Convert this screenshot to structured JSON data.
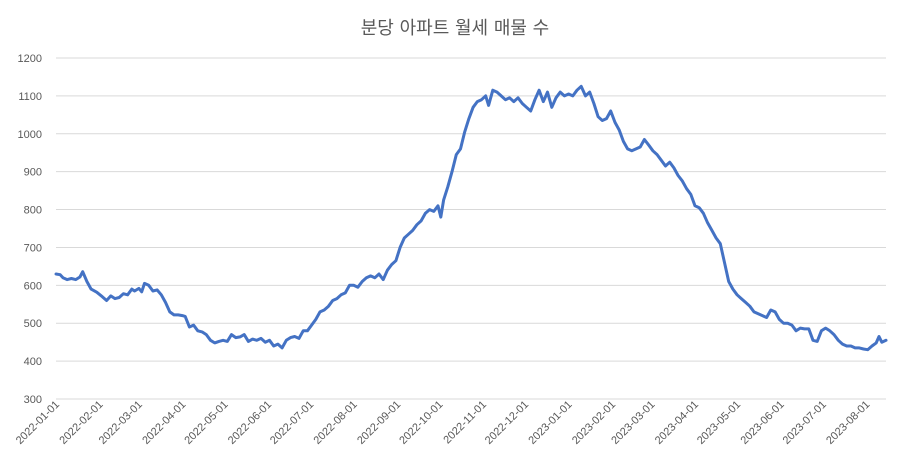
{
  "chart_data": {
    "type": "line",
    "title": "분당 아파트 월세 매물 수",
    "xlabel": "",
    "ylabel": "",
    "ylim": [
      300,
      1200
    ],
    "yticks": [
      300,
      400,
      500,
      600,
      700,
      800,
      900,
      1000,
      1100,
      1200
    ],
    "xlim": [
      "2022-01-01",
      "2023-08-15"
    ],
    "xticks": [
      "2022-01-01",
      "2022-02-01",
      "2022-03-01",
      "2022-04-01",
      "2022-05-01",
      "2022-06-01",
      "2022-07-01",
      "2022-08-01",
      "2022-09-01",
      "2022-10-01",
      "2022-11-01",
      "2022-12-01",
      "2023-01-01",
      "2023-02-01",
      "2023-03-01",
      "2023-04-01",
      "2023-05-01",
      "2023-06-01",
      "2023-07-01",
      "2023-08-01"
    ],
    "grid": true,
    "legend": "none",
    "series": [
      {
        "color": "#4472c4",
        "points": [
          [
            "2022-01-01",
            630
          ],
          [
            "2022-01-04",
            628
          ],
          [
            "2022-01-06",
            620
          ],
          [
            "2022-01-09",
            615
          ],
          [
            "2022-01-12",
            618
          ],
          [
            "2022-01-15",
            615
          ],
          [
            "2022-01-18",
            622
          ],
          [
            "2022-01-20",
            636
          ],
          [
            "2022-01-23",
            610
          ],
          [
            "2022-01-26",
            590
          ],
          [
            "2022-01-30",
            582
          ],
          [
            "2022-02-03",
            570
          ],
          [
            "2022-02-06",
            560
          ],
          [
            "2022-02-09",
            572
          ],
          [
            "2022-02-12",
            565
          ],
          [
            "2022-02-15",
            568
          ],
          [
            "2022-02-18",
            578
          ],
          [
            "2022-02-21",
            575
          ],
          [
            "2022-02-24",
            590
          ],
          [
            "2022-02-26",
            585
          ],
          [
            "2022-03-01",
            592
          ],
          [
            "2022-03-03",
            583
          ],
          [
            "2022-03-05",
            605
          ],
          [
            "2022-03-08",
            600
          ],
          [
            "2022-03-11",
            585
          ],
          [
            "2022-03-14",
            588
          ],
          [
            "2022-03-17",
            575
          ],
          [
            "2022-03-20",
            555
          ],
          [
            "2022-03-23",
            530
          ],
          [
            "2022-03-26",
            522
          ],
          [
            "2022-03-29",
            522
          ],
          [
            "2022-04-01",
            520
          ],
          [
            "2022-04-03",
            518
          ],
          [
            "2022-04-06",
            490
          ],
          [
            "2022-04-09",
            495
          ],
          [
            "2022-04-12",
            480
          ],
          [
            "2022-04-15",
            477
          ],
          [
            "2022-04-18",
            470
          ],
          [
            "2022-04-21",
            455
          ],
          [
            "2022-04-24",
            448
          ],
          [
            "2022-04-27",
            452
          ],
          [
            "2022-04-30",
            455
          ],
          [
            "2022-05-03",
            452
          ],
          [
            "2022-05-06",
            470
          ],
          [
            "2022-05-09",
            462
          ],
          [
            "2022-05-12",
            464
          ],
          [
            "2022-05-15",
            470
          ],
          [
            "2022-05-18",
            452
          ],
          [
            "2022-05-21",
            458
          ],
          [
            "2022-05-24",
            455
          ],
          [
            "2022-05-27",
            460
          ],
          [
            "2022-05-30",
            450
          ],
          [
            "2022-06-02",
            455
          ],
          [
            "2022-06-05",
            440
          ],
          [
            "2022-06-08",
            445
          ],
          [
            "2022-06-11",
            435
          ],
          [
            "2022-06-14",
            455
          ],
          [
            "2022-06-17",
            462
          ],
          [
            "2022-06-20",
            465
          ],
          [
            "2022-06-23",
            460
          ],
          [
            "2022-06-26",
            480
          ],
          [
            "2022-06-29",
            480
          ],
          [
            "2022-07-02",
            495
          ],
          [
            "2022-07-05",
            510
          ],
          [
            "2022-07-08",
            530
          ],
          [
            "2022-07-11",
            535
          ],
          [
            "2022-07-14",
            545
          ],
          [
            "2022-07-17",
            560
          ],
          [
            "2022-07-20",
            565
          ],
          [
            "2022-07-23",
            575
          ],
          [
            "2022-07-26",
            580
          ],
          [
            "2022-07-29",
            600
          ],
          [
            "2022-08-01",
            600
          ],
          [
            "2022-08-04",
            595
          ],
          [
            "2022-08-07",
            610
          ],
          [
            "2022-08-10",
            620
          ],
          [
            "2022-08-13",
            625
          ],
          [
            "2022-08-16",
            620
          ],
          [
            "2022-08-19",
            630
          ],
          [
            "2022-08-22",
            615
          ],
          [
            "2022-08-25",
            640
          ],
          [
            "2022-08-28",
            655
          ],
          [
            "2022-08-31",
            665
          ],
          [
            "2022-09-03",
            700
          ],
          [
            "2022-09-06",
            725
          ],
          [
            "2022-09-09",
            735
          ],
          [
            "2022-09-12",
            745
          ],
          [
            "2022-09-15",
            760
          ],
          [
            "2022-09-18",
            770
          ],
          [
            "2022-09-21",
            790
          ],
          [
            "2022-09-24",
            800
          ],
          [
            "2022-09-27",
            795
          ],
          [
            "2022-09-30",
            810
          ],
          [
            "2022-10-02",
            780
          ],
          [
            "2022-10-04",
            825
          ],
          [
            "2022-10-07",
            860
          ],
          [
            "2022-10-10",
            900
          ],
          [
            "2022-10-13",
            945
          ],
          [
            "2022-10-16",
            960
          ],
          [
            "2022-10-19",
            1005
          ],
          [
            "2022-10-22",
            1040
          ],
          [
            "2022-10-25",
            1070
          ],
          [
            "2022-10-28",
            1085
          ],
          [
            "2022-10-31",
            1090
          ],
          [
            "2022-11-03",
            1100
          ],
          [
            "2022-11-05",
            1075
          ],
          [
            "2022-11-08",
            1115
          ],
          [
            "2022-11-11",
            1110
          ],
          [
            "2022-11-14",
            1100
          ],
          [
            "2022-11-17",
            1090
          ],
          [
            "2022-11-20",
            1095
          ],
          [
            "2022-11-23",
            1085
          ],
          [
            "2022-11-26",
            1095
          ],
          [
            "2022-11-29",
            1080
          ],
          [
            "2022-12-02",
            1070
          ],
          [
            "2022-12-05",
            1060
          ],
          [
            "2022-12-08",
            1090
          ],
          [
            "2022-12-11",
            1115
          ],
          [
            "2022-12-14",
            1085
          ],
          [
            "2022-12-17",
            1110
          ],
          [
            "2022-12-20",
            1070
          ],
          [
            "2022-12-23",
            1095
          ],
          [
            "2022-12-26",
            1110
          ],
          [
            "2022-12-29",
            1100
          ],
          [
            "2023-01-01",
            1105
          ],
          [
            "2023-01-04",
            1100
          ],
          [
            "2023-01-07",
            1115
          ],
          [
            "2023-01-10",
            1125
          ],
          [
            "2023-01-13",
            1100
          ],
          [
            "2023-01-16",
            1110
          ],
          [
            "2023-01-19",
            1080
          ],
          [
            "2023-01-22",
            1045
          ],
          [
            "2023-01-25",
            1035
          ],
          [
            "2023-01-28",
            1040
          ],
          [
            "2023-01-31",
            1060
          ],
          [
            "2023-02-03",
            1030
          ],
          [
            "2023-02-06",
            1010
          ],
          [
            "2023-02-09",
            980
          ],
          [
            "2023-02-12",
            960
          ],
          [
            "2023-02-15",
            955
          ],
          [
            "2023-02-18",
            960
          ],
          [
            "2023-02-21",
            965
          ],
          [
            "2023-02-24",
            985
          ],
          [
            "2023-02-27",
            970
          ],
          [
            "2023-03-02",
            955
          ],
          [
            "2023-03-05",
            945
          ],
          [
            "2023-03-08",
            930
          ],
          [
            "2023-03-11",
            915
          ],
          [
            "2023-03-14",
            925
          ],
          [
            "2023-03-17",
            910
          ],
          [
            "2023-03-20",
            890
          ],
          [
            "2023-03-23",
            875
          ],
          [
            "2023-03-26",
            855
          ],
          [
            "2023-03-29",
            840
          ],
          [
            "2023-04-01",
            810
          ],
          [
            "2023-04-04",
            805
          ],
          [
            "2023-04-07",
            790
          ],
          [
            "2023-04-10",
            765
          ],
          [
            "2023-04-13",
            745
          ],
          [
            "2023-04-16",
            725
          ],
          [
            "2023-04-19",
            710
          ],
          [
            "2023-04-22",
            660
          ],
          [
            "2023-04-25",
            610
          ],
          [
            "2023-04-28",
            590
          ],
          [
            "2023-05-01",
            575
          ],
          [
            "2023-05-04",
            565
          ],
          [
            "2023-05-07",
            555
          ],
          [
            "2023-05-10",
            545
          ],
          [
            "2023-05-13",
            530
          ],
          [
            "2023-05-16",
            525
          ],
          [
            "2023-05-19",
            520
          ],
          [
            "2023-05-22",
            515
          ],
          [
            "2023-05-25",
            535
          ],
          [
            "2023-05-28",
            530
          ],
          [
            "2023-05-31",
            510
          ],
          [
            "2023-06-03",
            500
          ],
          [
            "2023-06-06",
            500
          ],
          [
            "2023-06-09",
            495
          ],
          [
            "2023-06-12",
            480
          ],
          [
            "2023-06-15",
            487
          ],
          [
            "2023-06-18",
            485
          ],
          [
            "2023-06-21",
            485
          ],
          [
            "2023-06-24",
            455
          ],
          [
            "2023-06-27",
            452
          ],
          [
            "2023-06-30",
            480
          ],
          [
            "2023-07-03",
            487
          ],
          [
            "2023-07-06",
            480
          ],
          [
            "2023-07-09",
            470
          ],
          [
            "2023-07-12",
            455
          ],
          [
            "2023-07-15",
            445
          ],
          [
            "2023-07-18",
            440
          ],
          [
            "2023-07-21",
            440
          ],
          [
            "2023-07-24",
            435
          ],
          [
            "2023-07-27",
            435
          ],
          [
            "2023-07-30",
            432
          ],
          [
            "2023-08-02",
            430
          ],
          [
            "2023-08-05",
            440
          ],
          [
            "2023-08-08",
            448
          ],
          [
            "2023-08-10",
            465
          ],
          [
            "2023-08-12",
            450
          ],
          [
            "2023-08-15",
            455
          ]
        ]
      }
    ]
  }
}
